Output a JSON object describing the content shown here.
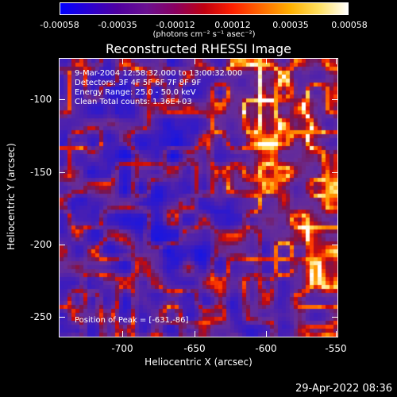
{
  "colorbar": {
    "ticks": [
      "-0.00058",
      "-0.00035",
      "-0.00012",
      "0.00012",
      "0.00035",
      "0.00058"
    ],
    "unit": "(photons cm⁻² s⁻¹ asec⁻²)",
    "colormap": [
      "#0000ff",
      "#2a00d0",
      "#5000a0",
      "#6a1090",
      "#8a0060",
      "#c00010",
      "#ff2000",
      "#ff6a00",
      "#ffb000",
      "#ffe060",
      "#ffffff"
    ]
  },
  "title": "Reconstructed RHESSI Image",
  "info": {
    "time": "9-Mar-2004 12:58:32.000 to 13:00:32.000",
    "detectors": "Detectors: 3F 4F 5F 6F 7F 8F 9F",
    "energy": "Energy Range: 25.0 - 50.0 keV",
    "clean": "Clean     Total counts: 1.36E+03",
    "peak": "Position of Peak = [-631,-86]"
  },
  "axes": {
    "xlabel": "Heliocentric X (arcsec)",
    "ylabel": "Heliocentric Y (arcsec)",
    "xticks": [
      "-700",
      "-650",
      "-600",
      "-550"
    ],
    "yticks": [
      "-100",
      "-150",
      "-200",
      "-250"
    ]
  },
  "datestamp": "29-Apr-2022 08:36"
}
